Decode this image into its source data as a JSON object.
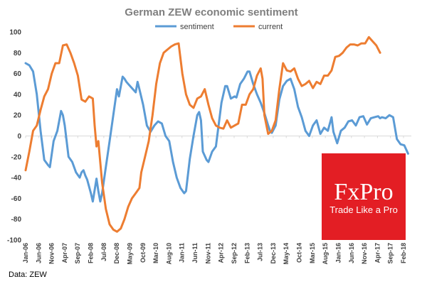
{
  "chart_data": {
    "type": "line",
    "title": "German ZEW economic sentiment",
    "xlabel": "",
    "ylabel": "",
    "ylim": [
      -100,
      100
    ],
    "yticks": [
      -100,
      -80,
      -60,
      -40,
      -20,
      0,
      20,
      40,
      60,
      80,
      100
    ],
    "grid": false,
    "legend_position": "top",
    "x_start": "2006-01",
    "x_end": "2018-05",
    "xtick_labels": [
      "Jan-06",
      "Jun-06",
      "Nov-06",
      "Apr-07",
      "Sep-07",
      "Feb-08",
      "Jul-08",
      "Dec-08",
      "May-09",
      "Oct-09",
      "Mar-10",
      "Aug-10",
      "Jan-11",
      "Jun-11",
      "Nov-11",
      "Apr-12",
      "Sep-12",
      "Feb-13",
      "Jul-13",
      "Dec-13",
      "May-14",
      "Oct-14",
      "Mar-15",
      "Aug-15",
      "Jan-16",
      "Jun-16",
      "Nov-16",
      "Apr-17",
      "Sep-17",
      "Feb-18"
    ],
    "source": "Data: ZEW",
    "series": [
      {
        "name": "sentiment",
        "color": "#5b9bd5",
        "points": [
          [
            0,
            70
          ],
          [
            2,
            68
          ],
          [
            4,
            62
          ],
          [
            6,
            40
          ],
          [
            8,
            5
          ],
          [
            10,
            -23
          ],
          [
            12,
            -28
          ],
          [
            13,
            -30
          ],
          [
            15,
            -5
          ],
          [
            17,
            5
          ],
          [
            19,
            24
          ],
          [
            20,
            20
          ],
          [
            21,
            10
          ],
          [
            23,
            -20
          ],
          [
            25,
            -25
          ],
          [
            27,
            -35
          ],
          [
            29,
            -40
          ],
          [
            30,
            -35
          ],
          [
            31,
            -33
          ],
          [
            32,
            -38
          ],
          [
            33,
            -42
          ],
          [
            35,
            -55
          ],
          [
            36,
            -63
          ],
          [
            37,
            -52
          ],
          [
            38,
            -41
          ],
          [
            39,
            -53
          ],
          [
            40,
            -63
          ],
          [
            41,
            -55
          ],
          [
            43,
            -30
          ],
          [
            45,
            -5
          ],
          [
            47,
            20
          ],
          [
            49,
            45
          ],
          [
            50,
            38
          ],
          [
            52,
            57
          ],
          [
            53,
            55
          ],
          [
            54,
            52
          ],
          [
            55,
            50
          ],
          [
            57,
            46
          ],
          [
            58,
            44
          ],
          [
            59,
            42
          ],
          [
            60,
            52
          ],
          [
            61,
            45
          ],
          [
            63,
            30
          ],
          [
            65,
            10
          ],
          [
            67,
            4
          ],
          [
            69,
            10
          ],
          [
            71,
            14
          ],
          [
            73,
            12
          ],
          [
            75,
            0
          ],
          [
            77,
            -5
          ],
          [
            79,
            -25
          ],
          [
            81,
            -40
          ],
          [
            83,
            -50
          ],
          [
            85,
            -55
          ],
          [
            86,
            -53
          ],
          [
            88,
            -22
          ],
          [
            90,
            0
          ],
          [
            92,
            20
          ],
          [
            93,
            23
          ],
          [
            94,
            15
          ],
          [
            95,
            -15
          ],
          [
            97,
            -23
          ],
          [
            98,
            -25
          ],
          [
            100,
            -15
          ],
          [
            102,
            -10
          ],
          [
            104,
            18
          ],
          [
            105,
            32
          ],
          [
            107,
            48
          ],
          [
            108,
            48
          ],
          [
            110,
            36
          ],
          [
            112,
            38
          ],
          [
            113,
            37
          ],
          [
            115,
            50
          ],
          [
            117,
            55
          ],
          [
            119,
            62
          ],
          [
            120,
            62
          ],
          [
            122,
            50
          ],
          [
            124,
            40
          ],
          [
            126,
            32
          ],
          [
            128,
            22
          ],
          [
            130,
            10
          ],
          [
            131,
            5
          ],
          [
            132,
            3
          ],
          [
            134,
            10
          ],
          [
            136,
            35
          ],
          [
            138,
            48
          ],
          [
            140,
            53
          ],
          [
            142,
            55
          ],
          [
            144,
            45
          ],
          [
            146,
            28
          ],
          [
            148,
            18
          ],
          [
            150,
            5
          ],
          [
            152,
            0
          ],
          [
            154,
            10
          ],
          [
            156,
            15
          ],
          [
            158,
            2
          ],
          [
            160,
            8
          ],
          [
            162,
            5
          ],
          [
            164,
            18
          ],
          [
            165,
            4
          ],
          [
            167,
            -7
          ],
          [
            169,
            5
          ],
          [
            171,
            8
          ],
          [
            173,
            14
          ],
          [
            175,
            15
          ],
          [
            177,
            10
          ],
          [
            179,
            18
          ],
          [
            181,
            19
          ],
          [
            183,
            11
          ],
          [
            185,
            17
          ],
          [
            187,
            18
          ],
          [
            189,
            19
          ],
          [
            190,
            17
          ],
          [
            191,
            18
          ],
          [
            193,
            17
          ],
          [
            195,
            20
          ],
          [
            197,
            18
          ],
          [
            199,
            -3
          ],
          [
            201,
            -8
          ],
          [
            203,
            -9
          ],
          [
            205,
            -17
          ]
        ]
      },
      {
        "name": "current",
        "color": "#ed7d31",
        "points": [
          [
            0,
            -33
          ],
          [
            2,
            -15
          ],
          [
            4,
            5
          ],
          [
            6,
            10
          ],
          [
            8,
            25
          ],
          [
            10,
            38
          ],
          [
            12,
            45
          ],
          [
            14,
            60
          ],
          [
            16,
            70
          ],
          [
            18,
            70
          ],
          [
            20,
            87
          ],
          [
            22,
            88
          ],
          [
            24,
            80
          ],
          [
            26,
            70
          ],
          [
            28,
            58
          ],
          [
            30,
            35
          ],
          [
            32,
            33
          ],
          [
            34,
            38
          ],
          [
            36,
            36
          ],
          [
            37,
            10
          ],
          [
            38,
            -10
          ],
          [
            39,
            -5
          ],
          [
            41,
            -45
          ],
          [
            43,
            -70
          ],
          [
            45,
            -85
          ],
          [
            47,
            -90
          ],
          [
            49,
            -92
          ],
          [
            51,
            -89
          ],
          [
            53,
            -80
          ],
          [
            55,
            -68
          ],
          [
            57,
            -60
          ],
          [
            59,
            -55
          ],
          [
            61,
            -50
          ],
          [
            62,
            -35
          ],
          [
            64,
            -20
          ],
          [
            66,
            -5
          ],
          [
            68,
            20
          ],
          [
            70,
            50
          ],
          [
            72,
            70
          ],
          [
            74,
            80
          ],
          [
            76,
            83
          ],
          [
            78,
            86
          ],
          [
            80,
            88
          ],
          [
            82,
            89
          ],
          [
            84,
            60
          ],
          [
            86,
            40
          ],
          [
            88,
            30
          ],
          [
            90,
            27
          ],
          [
            92,
            36
          ],
          [
            94,
            38
          ],
          [
            96,
            45
          ],
          [
            98,
            30
          ],
          [
            100,
            17
          ],
          [
            102,
            10
          ],
          [
            104,
            8
          ],
          [
            106,
            7
          ],
          [
            108,
            15
          ],
          [
            110,
            8
          ],
          [
            112,
            10
          ],
          [
            114,
            12
          ],
          [
            116,
            30
          ],
          [
            118,
            30
          ],
          [
            120,
            40
          ],
          [
            122,
            45
          ],
          [
            124,
            58
          ],
          [
            126,
            65
          ],
          [
            127,
            55
          ],
          [
            128,
            20
          ],
          [
            130,
            2
          ],
          [
            132,
            5
          ],
          [
            134,
            15
          ],
          [
            136,
            45
          ],
          [
            138,
            70
          ],
          [
            140,
            63
          ],
          [
            142,
            62
          ],
          [
            144,
            65
          ],
          [
            146,
            55
          ],
          [
            148,
            48
          ],
          [
            150,
            50
          ],
          [
            152,
            53
          ],
          [
            154,
            46
          ],
          [
            156,
            52
          ],
          [
            158,
            50
          ],
          [
            160,
            58
          ],
          [
            162,
            58
          ],
          [
            164,
            63
          ],
          [
            166,
            76
          ],
          [
            168,
            77
          ],
          [
            170,
            80
          ],
          [
            172,
            85
          ],
          [
            174,
            88
          ],
          [
            176,
            88
          ],
          [
            178,
            87
          ],
          [
            180,
            89
          ],
          [
            182,
            89
          ],
          [
            184,
            95
          ],
          [
            186,
            91
          ],
          [
            188,
            87
          ],
          [
            190,
            80
          ]
        ]
      }
    ]
  },
  "logo": {
    "brand": "FxPro",
    "tagline": "Trade Like a Pro"
  }
}
